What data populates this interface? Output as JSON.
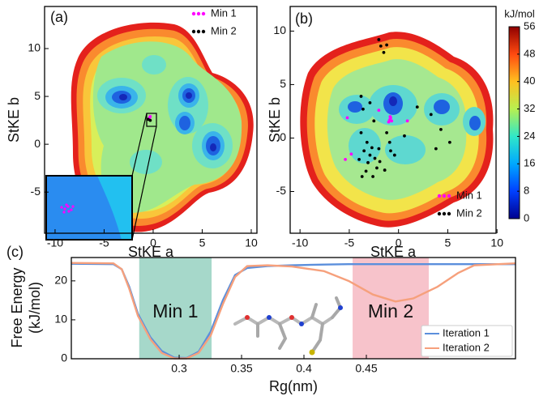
{
  "chart_data": [
    {
      "type": "contour",
      "label": "(a)",
      "xlabel": "StKE a",
      "ylabel": "StKE b",
      "xlim": [
        -11.07,
        10.58
      ],
      "ylim": [
        -9.3,
        14.4
      ],
      "xticks": [
        -10,
        -5,
        0,
        5,
        10
      ],
      "yticks": [
        -5,
        0,
        5,
        10
      ],
      "legend": "upper right",
      "series": [
        {
          "name": "Min 1",
          "color": "#ff00ff",
          "x": [
            -0.35,
            -0.3,
            -0.4
          ],
          "y": [
            2.8,
            2.9,
            2.7
          ]
        },
        {
          "name": "Min 2",
          "color": "#000000",
          "x": [
            -0.3,
            -0.5
          ],
          "y": [
            2.5,
            2.6
          ]
        }
      ]
    },
    {
      "type": "contour",
      "label": "(b)",
      "xlabel": "StKE a",
      "ylabel": "StKE b",
      "xlim": [
        -11,
        9.9
      ],
      "ylim": [
        -8.9,
        12.3
      ],
      "xticks": [
        -10,
        -5,
        0,
        5,
        10
      ],
      "yticks": [
        -5,
        0,
        5,
        10
      ],
      "legend": "lower right",
      "colorbar": {
        "label": "kJ/mol",
        "lim": [
          0,
          56
        ],
        "ticks": [
          0,
          8,
          16,
          24,
          32,
          40,
          48,
          56
        ],
        "colormap": [
          "#00008f",
          "#0040ff",
          "#00a8ff",
          "#30e8c8",
          "#b8f050",
          "#ffc020",
          "#ff4a10",
          "#8f0000"
        ]
      },
      "series": [
        {
          "name": "Min 1",
          "color": "#ff00ff",
          "x": [
            -0.9,
            -0.8,
            -1.0,
            -0.7,
            -0.85,
            -5.2,
            -5.4,
            0.9,
            -2.0,
            -4.8
          ],
          "y": [
            1.7,
            1.9,
            1.5,
            1.6,
            2.0,
            1.9,
            -2.0,
            1.6,
            2.6,
            -1.5
          ]
        },
        {
          "name": "Min 2",
          "color": "#000000",
          "x": [
            -2,
            -1.8,
            -1.5,
            -1.2,
            -3.8,
            -2.9,
            -3.6,
            -2.5,
            -3.8,
            -3.2,
            -2.7,
            -3.5,
            -2.9,
            -2.4,
            -3.1,
            -2.2,
            -3.3,
            -2.6,
            -1.9,
            -4.0,
            -2.0,
            -0.8,
            -0.4,
            -0.9,
            0.6,
            1.9,
            3.3,
            3.8,
            4.3,
            5.2,
            -1.4,
            -3.7,
            -1.2
          ],
          "y": [
            9.2,
            8.6,
            8.0,
            8.7,
            3.9,
            3.3,
            2.7,
            1.6,
            0.5,
            -0.4,
            -0.9,
            -1.2,
            -1.6,
            -1.9,
            -2.3,
            -2.8,
            -3.1,
            -3.6,
            -2.2,
            -2.0,
            -1.0,
            -1.2,
            -1.6,
            -0.4,
            0.2,
            2.9,
            2.2,
            -1.0,
            0.8,
            -0.4,
            -3.0,
            -3.6,
            0.5
          ]
        }
      ]
    },
    {
      "type": "line",
      "label": "(c)",
      "xlabel": "Rg(nm)",
      "ylabel": [
        "Free Energy",
        "(kJ/mol)"
      ],
      "xlim": [
        0.2136,
        0.5695
      ],
      "ylim": [
        0,
        26
      ],
      "xticks": [
        0.3,
        0.35,
        0.4,
        0.45
      ],
      "yticks": [
        0,
        10,
        20
      ],
      "legend": "lower right",
      "spans": [
        {
          "label": "Min 1",
          "color": "#a6d8ca",
          "x": [
            0.268,
            0.326
          ]
        },
        {
          "label": "Min 2",
          "color": "#f7c3cb",
          "x": [
            0.439,
            0.5
          ]
        }
      ],
      "x": [
        0.2136,
        0.2474,
        0.254,
        0.26,
        0.267,
        0.277,
        0.286,
        0.296,
        0.306,
        0.3156,
        0.3253,
        0.335,
        0.3448,
        0.3545,
        0.3708,
        0.3903,
        0.4162,
        0.4357,
        0.4552,
        0.4734,
        0.4877,
        0.5071,
        0.5234,
        0.5364,
        0.5695
      ],
      "series": [
        {
          "name": "Iteration 1",
          "color": "#5b8fdc",
          "values": [
            24.4,
            24.3,
            23,
            18.5,
            11.5,
            5.5,
            2,
            0.3,
            0.2,
            1.8,
            7,
            15,
            21.5,
            23.3,
            23.8,
            24,
            24.2,
            24.3,
            24.3,
            24.3,
            24.3,
            24.3,
            24.3,
            24.3,
            24.3
          ]
        },
        {
          "name": "Iteration 2",
          "color": "#f6a07c",
          "values": [
            24.6,
            24.5,
            23,
            18,
            11,
            5,
            1.5,
            0.1,
            0.1,
            1.5,
            6,
            14,
            21,
            23.8,
            24,
            23.7,
            22.5,
            20,
            16.5,
            14.7,
            15.5,
            18.5,
            22,
            24,
            24.5
          ]
        }
      ]
    }
  ]
}
